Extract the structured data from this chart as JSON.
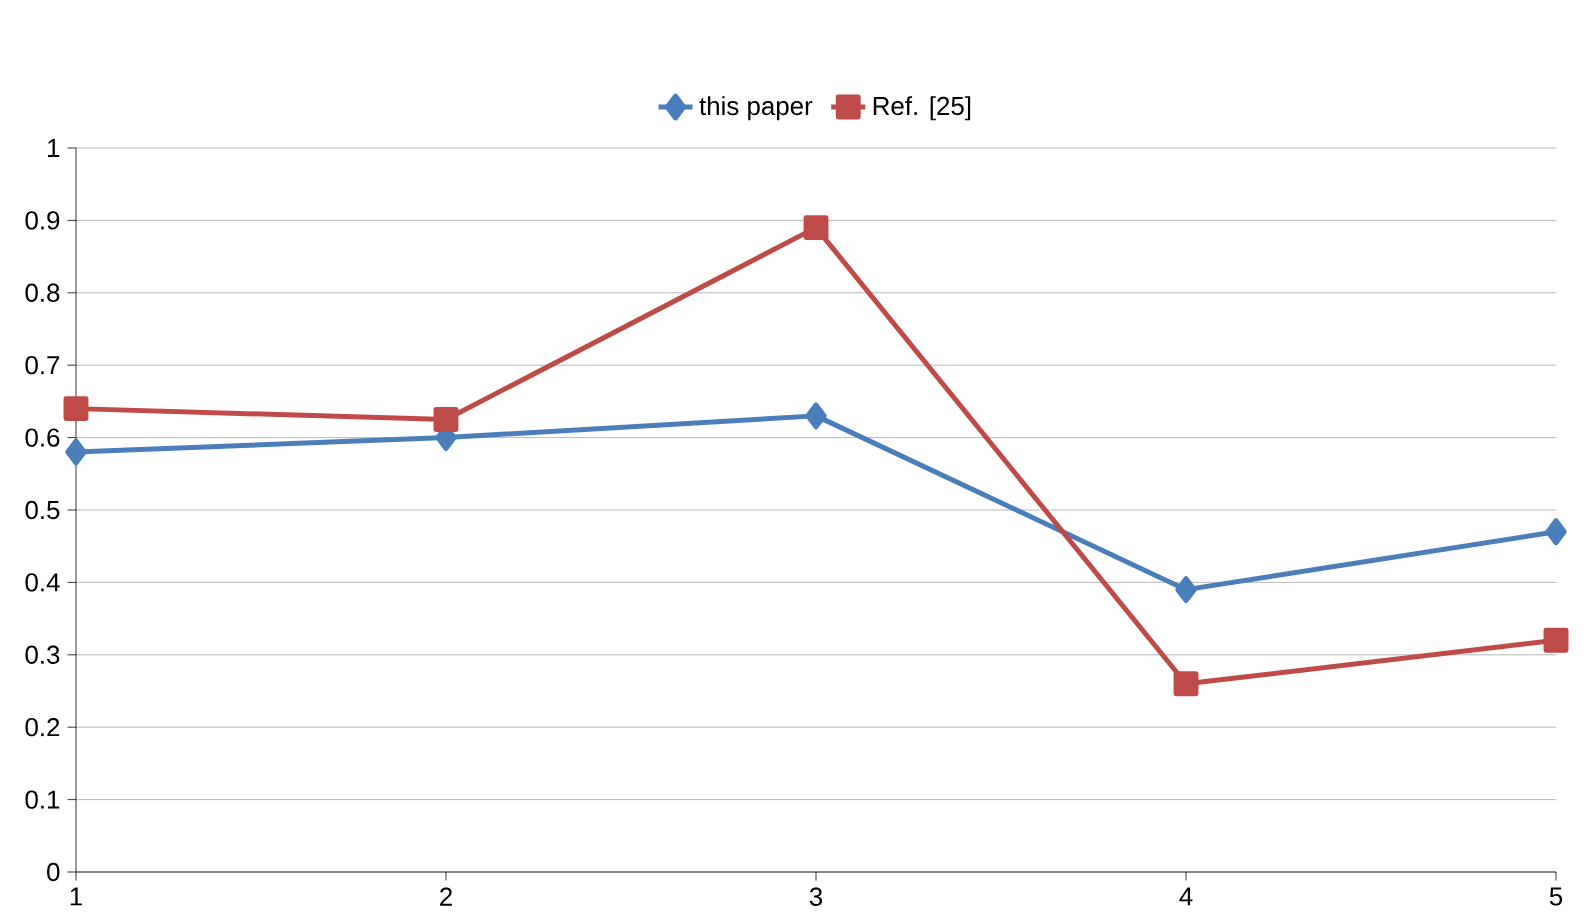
{
  "chart_data": {
    "type": "line",
    "x": [
      1,
      2,
      3,
      4,
      5
    ],
    "series": [
      {
        "name": "this paper",
        "color": "#4a7ebb",
        "marker": "diamond",
        "values": [
          0.58,
          0.6,
          0.63,
          0.39,
          0.47
        ]
      },
      {
        "name": "Ref. [25]",
        "color": "#be4b48",
        "marker": "square",
        "values": [
          0.64,
          0.625,
          0.89,
          0.26,
          0.32
        ]
      }
    ],
    "xlim": [
      1,
      5
    ],
    "ylim": [
      0,
      1
    ],
    "xticks": [
      1,
      2,
      3,
      4,
      5
    ],
    "yticks": [
      0,
      0.1,
      0.2,
      0.3,
      0.4,
      0.5,
      0.6,
      0.7,
      0.8,
      0.9,
      1
    ],
    "grid": "y",
    "legend": "top",
    "line_style": "solid"
  }
}
